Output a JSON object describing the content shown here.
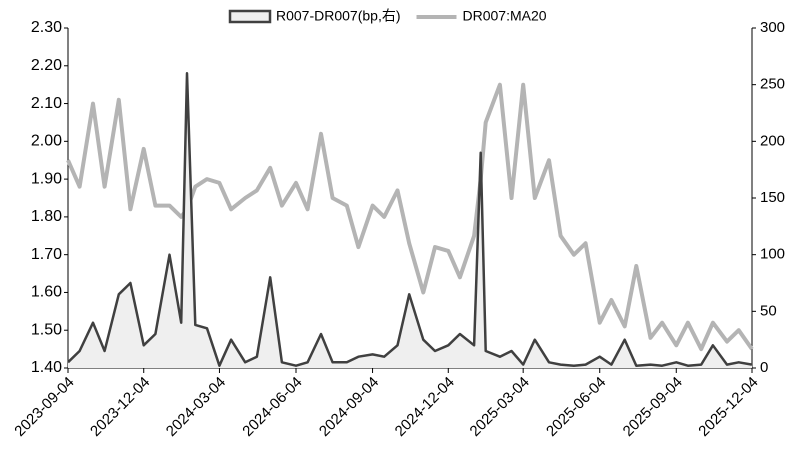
{
  "chart_data": {
    "type": "line",
    "x": [
      "2023-09-04",
      "2023-09-18",
      "2023-10-04",
      "2023-10-18",
      "2023-11-04",
      "2023-11-18",
      "2023-12-04",
      "2023-12-18",
      "2024-01-04",
      "2024-01-18",
      "2024-01-25",
      "2024-02-04",
      "2024-02-18",
      "2024-03-04",
      "2024-03-18",
      "2024-04-04",
      "2024-04-18",
      "2024-05-04",
      "2024-05-18",
      "2024-06-04",
      "2024-06-18",
      "2024-07-04",
      "2024-07-18",
      "2024-08-04",
      "2024-08-18",
      "2024-09-04",
      "2024-09-18",
      "2024-10-04",
      "2024-10-18",
      "2024-11-04",
      "2024-11-18",
      "2024-12-04",
      "2024-12-18",
      "2025-01-04",
      "2025-01-12",
      "2025-01-18",
      "2025-02-04",
      "2025-02-18",
      "2025-03-04",
      "2025-03-18",
      "2025-04-04",
      "2025-04-18",
      "2025-05-04",
      "2025-05-18",
      "2025-06-04",
      "2025-06-18",
      "2025-07-04",
      "2025-07-18",
      "2025-08-04",
      "2025-08-18",
      "2025-09-04",
      "2025-09-18",
      "2025-10-04",
      "2025-10-18",
      "2025-11-04",
      "2025-11-18",
      "2025-12-04"
    ],
    "series": [
      {
        "name": "R007-DR007(bp,右)",
        "color": "#404040",
        "fill": "#efefef",
        "axis": "y2",
        "values": [
          5,
          15,
          40,
          15,
          65,
          75,
          20,
          30,
          100,
          40,
          260,
          38,
          35,
          2,
          25,
          5,
          10,
          80,
          5,
          2,
          5,
          30,
          5,
          5,
          10,
          12,
          10,
          20,
          65,
          25,
          15,
          20,
          30,
          20,
          190,
          15,
          10,
          15,
          3,
          25,
          5,
          3,
          2,
          3,
          10,
          3,
          25,
          2,
          3,
          2,
          5,
          2,
          3,
          20,
          3,
          5,
          3
        ]
      },
      {
        "name": "DR007:MA20",
        "color": "#b4b4b4",
        "values": [
          1.95,
          1.88,
          2.1,
          1.88,
          2.11,
          1.82,
          1.98,
          1.83,
          1.83,
          1.8,
          1.82,
          1.88,
          1.9,
          1.89,
          1.82,
          1.85,
          1.87,
          1.93,
          1.83,
          1.89,
          1.82,
          2.02,
          1.85,
          1.83,
          1.72,
          1.83,
          1.8,
          1.87,
          1.73,
          1.6,
          1.72,
          1.71,
          1.64,
          1.75,
          1.9,
          2.05,
          2.15,
          1.85,
          2.15,
          1.85,
          1.95,
          1.75,
          1.7,
          1.73,
          1.52,
          1.58,
          1.51,
          1.67,
          1.48,
          1.52,
          1.46,
          1.52,
          1.45,
          1.52,
          1.47,
          1.5,
          1.45
        ]
      }
    ],
    "xlim": [
      "2023-09-04",
      "2025-12-04"
    ],
    "xticks": [
      "2023-09-04",
      "2023-12-04",
      "2024-03-04",
      "2024-06-04",
      "2024-09-04",
      "2024-12-04",
      "2025-03-04",
      "2025-06-04",
      "2025-09-04",
      "2025-12-04"
    ],
    "ylim": [
      1.4,
      2.3
    ],
    "yticks": [
      {
        "value": 1.4,
        "label": "1.40"
      },
      {
        "value": 1.5,
        "label": "1.50"
      },
      {
        "value": 1.6,
        "label": "1.60"
      },
      {
        "value": 1.7,
        "label": "1.70"
      },
      {
        "value": 1.8,
        "label": "1.80"
      },
      {
        "value": 1.9,
        "label": "1.90"
      },
      {
        "value": 2.0,
        "label": "2.00"
      },
      {
        "value": 2.1,
        "label": "2.10"
      },
      {
        "value": 2.2,
        "label": "2.20"
      },
      {
        "value": 2.3,
        "label": "2.30"
      }
    ],
    "y2lim": [
      0,
      300
    ],
    "y2ticks": [
      0,
      50,
      100,
      150,
      200,
      250,
      300
    ],
    "grid": false
  }
}
